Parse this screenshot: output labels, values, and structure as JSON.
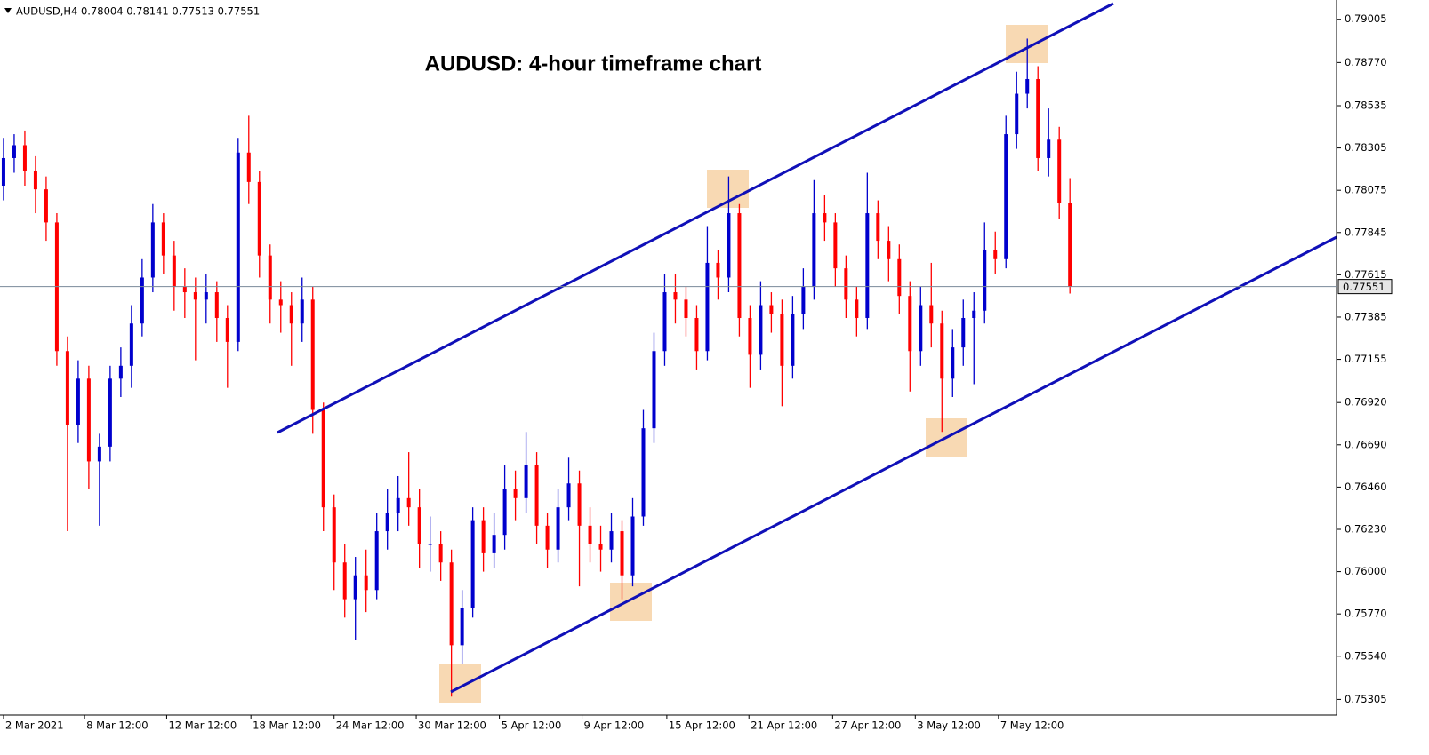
{
  "chart_data": {
    "type": "candlestick",
    "header": "AUDUSD,H4  0.78004 0.78141 0.77513 0.77551",
    "title": "AUDUSD: 4-hour timeframe chart",
    "up_color": "#0000cd",
    "down_color": "#ff0000",
    "last_price": 0.77551,
    "xlim": [
      -0.33,
      125
    ],
    "ylim": [
      0.7522,
      0.7911
    ],
    "xticks": [
      {
        "value": 0,
        "label": "2 Mar 2021"
      },
      {
        "value": 7.6,
        "label": "8 Mar 12:00"
      },
      {
        "value": 15.3,
        "label": "12 Mar 12:00"
      },
      {
        "value": 23.2,
        "label": "18 Mar 12:00"
      },
      {
        "value": 31,
        "label": "24 Mar 12:00"
      },
      {
        "value": 38.7,
        "label": "30 Mar 12:00"
      },
      {
        "value": 46.5,
        "label": "5 Apr 12:00"
      },
      {
        "value": 54.25,
        "label": "9 Apr 12:00"
      },
      {
        "value": 62.2,
        "label": "15 Apr 12:00"
      },
      {
        "value": 69.9,
        "label": "21 Apr 12:00"
      },
      {
        "value": 77.75,
        "label": "27 Apr 12:00"
      },
      {
        "value": 85.5,
        "label": "3 May 12:00"
      },
      {
        "value": 93.3,
        "label": "7 May 12:00"
      }
    ],
    "yticks": [
      0.79005,
      {
        "value": 0.7877,
        "label": "0.78770"
      },
      0.78535,
      0.78305,
      0.78075,
      0.77845,
      0.77615,
      0.77385,
      0.77155,
      {
        "value": 0.7692,
        "label": "0.76920"
      },
      {
        "value": 0.7669,
        "label": "0.76690"
      },
      {
        "value": 0.7646,
        "label": "0.76460"
      },
      {
        "value": 0.7623,
        "label": "0.76230"
      },
      {
        "value": 0.76,
        "label": "0.76000"
      },
      {
        "value": 0.7577,
        "label": "0.75770"
      },
      {
        "value": 0.7554,
        "label": "0.75540"
      },
      0.75305
    ],
    "open": [
      0.781,
      0.7825,
      0.7832,
      0.7818,
      0.7808,
      0.779,
      0.772,
      0.768,
      0.7705,
      0.766,
      0.7668,
      0.7705,
      0.7712,
      0.7735,
      0.776,
      0.779,
      0.7772,
      0.7755,
      0.7752,
      0.7748,
      0.7752,
      0.7738,
      0.7725,
      0.7828,
      0.7812,
      0.7772,
      0.7748,
      0.7745,
      0.7735,
      0.7748,
      0.7688,
      0.7635,
      0.7605,
      0.7585,
      0.7598,
      0.759,
      0.7622,
      0.7632,
      0.764,
      0.7635,
      0.7615,
      0.7615,
      0.7605,
      0.756,
      0.758,
      0.7628,
      0.761,
      0.762,
      0.7645,
      0.764,
      0.7658,
      0.7625,
      0.7612,
      0.7635,
      0.7648,
      0.7625,
      0.7615,
      0.7612,
      0.7622,
      0.7598,
      0.763,
      0.7678,
      0.772,
      0.7752,
      0.7748,
      0.7738,
      0.772,
      0.7768,
      0.776,
      0.7795,
      0.7738,
      0.7718,
      0.7745,
      0.774,
      0.7712,
      0.774,
      0.7755,
      0.7795,
      0.779,
      0.7765,
      0.7748,
      0.7738,
      0.7795,
      0.778,
      0.777,
      0.775,
      0.772,
      0.7745,
      0.7735,
      0.7705,
      0.7722,
      0.7738,
      0.7742,
      0.7775,
      0.777,
      0.7838,
      0.786,
      0.7868,
      0.7825,
      0.7835,
      0.78004
    ],
    "high": [
      0.7836,
      0.7838,
      0.784,
      0.7826,
      0.7815,
      0.7795,
      0.7728,
      0.7715,
      0.7712,
      0.7675,
      0.7712,
      0.7722,
      0.7745,
      0.777,
      0.78,
      0.7795,
      0.778,
      0.7765,
      0.776,
      0.7762,
      0.7758,
      0.7745,
      0.7836,
      0.7848,
      0.7818,
      0.7778,
      0.7758,
      0.7752,
      0.776,
      0.7755,
      0.7692,
      0.7642,
      0.7615,
      0.7608,
      0.7612,
      0.7632,
      0.7645,
      0.7652,
      0.7665,
      0.7645,
      0.763,
      0.7622,
      0.7612,
      0.759,
      0.7635,
      0.7635,
      0.7632,
      0.7658,
      0.7655,
      0.7676,
      0.7665,
      0.7632,
      0.7645,
      0.7662,
      0.7655,
      0.7635,
      0.7625,
      0.7632,
      0.7628,
      0.764,
      0.7688,
      0.773,
      0.7762,
      0.7762,
      0.7755,
      0.7745,
      0.7788,
      0.7775,
      0.7815,
      0.78,
      0.7745,
      0.7758,
      0.7752,
      0.7748,
      0.775,
      0.7765,
      0.7813,
      0.7805,
      0.7795,
      0.7772,
      0.7755,
      0.7817,
      0.7802,
      0.7788,
      0.7778,
      0.7758,
      0.7755,
      0.7768,
      0.7742,
      0.7732,
      0.7748,
      0.7752,
      0.779,
      0.7785,
      0.7848,
      0.7872,
      0.789,
      0.7875,
      0.7852,
      0.7842,
      0.78141
    ],
    "low": [
      0.7802,
      0.7817,
      0.781,
      0.7795,
      0.778,
      0.7712,
      0.7622,
      0.767,
      0.7645,
      0.7625,
      0.766,
      0.7695,
      0.77,
      0.7728,
      0.7752,
      0.7762,
      0.7742,
      0.7738,
      0.7715,
      0.7735,
      0.7725,
      0.77,
      0.772,
      0.78,
      0.776,
      0.7735,
      0.773,
      0.7712,
      0.7725,
      0.7675,
      0.7622,
      0.759,
      0.7575,
      0.7563,
      0.7578,
      0.7585,
      0.7612,
      0.7622,
      0.7625,
      0.7602,
      0.76,
      0.7595,
      0.7532,
      0.755,
      0.7575,
      0.76,
      0.7602,
      0.7612,
      0.7628,
      0.7632,
      0.7615,
      0.7602,
      0.7605,
      0.7628,
      0.7592,
      0.7605,
      0.76,
      0.7605,
      0.7585,
      0.7592,
      0.7625,
      0.767,
      0.7712,
      0.7735,
      0.7728,
      0.771,
      0.7715,
      0.7748,
      0.7752,
      0.7728,
      0.77,
      0.771,
      0.773,
      0.769,
      0.7705,
      0.7732,
      0.7748,
      0.778,
      0.7755,
      0.7738,
      0.7728,
      0.7732,
      0.777,
      0.7758,
      0.774,
      0.7698,
      0.7712,
      0.7722,
      0.7676,
      0.7695,
      0.7712,
      0.7702,
      0.7735,
      0.7762,
      0.7765,
      0.783,
      0.7852,
      0.7818,
      0.7815,
      0.7792,
      0.77513
    ],
    "close": [
      0.7825,
      0.7832,
      0.7818,
      0.7808,
      0.779,
      0.772,
      0.768,
      0.7705,
      0.766,
      0.7668,
      0.7705,
      0.7712,
      0.7735,
      0.776,
      0.779,
      0.7772,
      0.7755,
      0.7752,
      0.7748,
      0.7752,
      0.7738,
      0.7725,
      0.7828,
      0.7812,
      0.7772,
      0.7748,
      0.7745,
      0.7735,
      0.7748,
      0.7688,
      0.7635,
      0.7605,
      0.7585,
      0.7598,
      0.759,
      0.7622,
      0.7632,
      0.764,
      0.7635,
      0.7615,
      0.7615,
      0.7605,
      0.756,
      0.758,
      0.7628,
      0.761,
      0.762,
      0.7645,
      0.764,
      0.7658,
      0.7625,
      0.7612,
      0.7635,
      0.7648,
      0.7625,
      0.7615,
      0.7612,
      0.7622,
      0.7598,
      0.763,
      0.7678,
      0.772,
      0.7752,
      0.7748,
      0.7738,
      0.772,
      0.7768,
      0.776,
      0.7795,
      0.7738,
      0.7718,
      0.7745,
      0.774,
      0.7712,
      0.774,
      0.7755,
      0.7795,
      0.779,
      0.7765,
      0.7748,
      0.7738,
      0.7795,
      0.778,
      0.777,
      0.775,
      0.772,
      0.7745,
      0.7735,
      0.7705,
      0.7722,
      0.7738,
      0.7742,
      0.7775,
      0.777,
      0.7838,
      0.786,
      0.7868,
      0.7825,
      0.7835,
      0.78004,
      0.77551
    ]
  }
}
